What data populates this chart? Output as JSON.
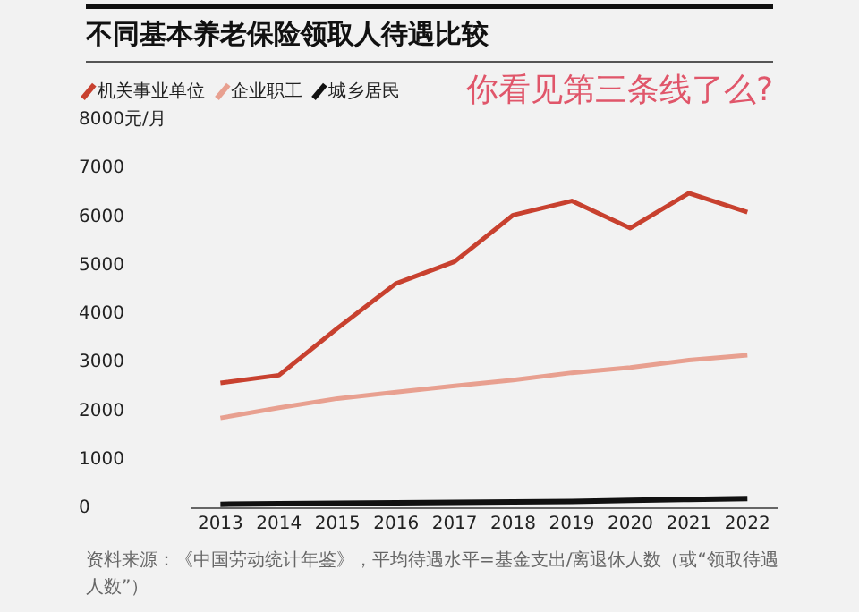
{
  "chart_data": {
    "type": "line",
    "title": "不同基本养老保险领取人待遇比较",
    "categories": [
      "2013",
      "2014",
      "2015",
      "2016",
      "2017",
      "2018",
      "2019",
      "2020",
      "2021",
      "2022"
    ],
    "series": [
      {
        "name": "机关事业单位",
        "color": "#c8412f",
        "values": [
          2580,
          2740,
          3710,
          4630,
          5080,
          6040,
          6330,
          5770,
          6490,
          6100
        ]
      },
      {
        "name": "企业职工",
        "color": "#e8a090",
        "values": [
          1860,
          2070,
          2260,
          2390,
          2520,
          2640,
          2790,
          2900,
          3050,
          3150
        ]
      },
      {
        "name": "城乡居民",
        "color": "#111111",
        "values": [
          80,
          90,
          100,
          110,
          120,
          130,
          140,
          160,
          180,
          200
        ]
      }
    ],
    "ylim": [
      0,
      8000
    ],
    "yticks": [
      0,
      1000,
      2000,
      3000,
      4000,
      5000,
      6000,
      7000,
      {
        "value": 8000,
        "label": "8000元/月"
      }
    ],
    "grid": false,
    "legend": "top left",
    "marker": "none",
    "annotations": [
      "你看见第三条线了么?",
      "资料来源：《中国劳动统计年鉴》，平均待遇水平=基金支出/离退休人数（或“领取待遇人数”）"
    ]
  }
}
